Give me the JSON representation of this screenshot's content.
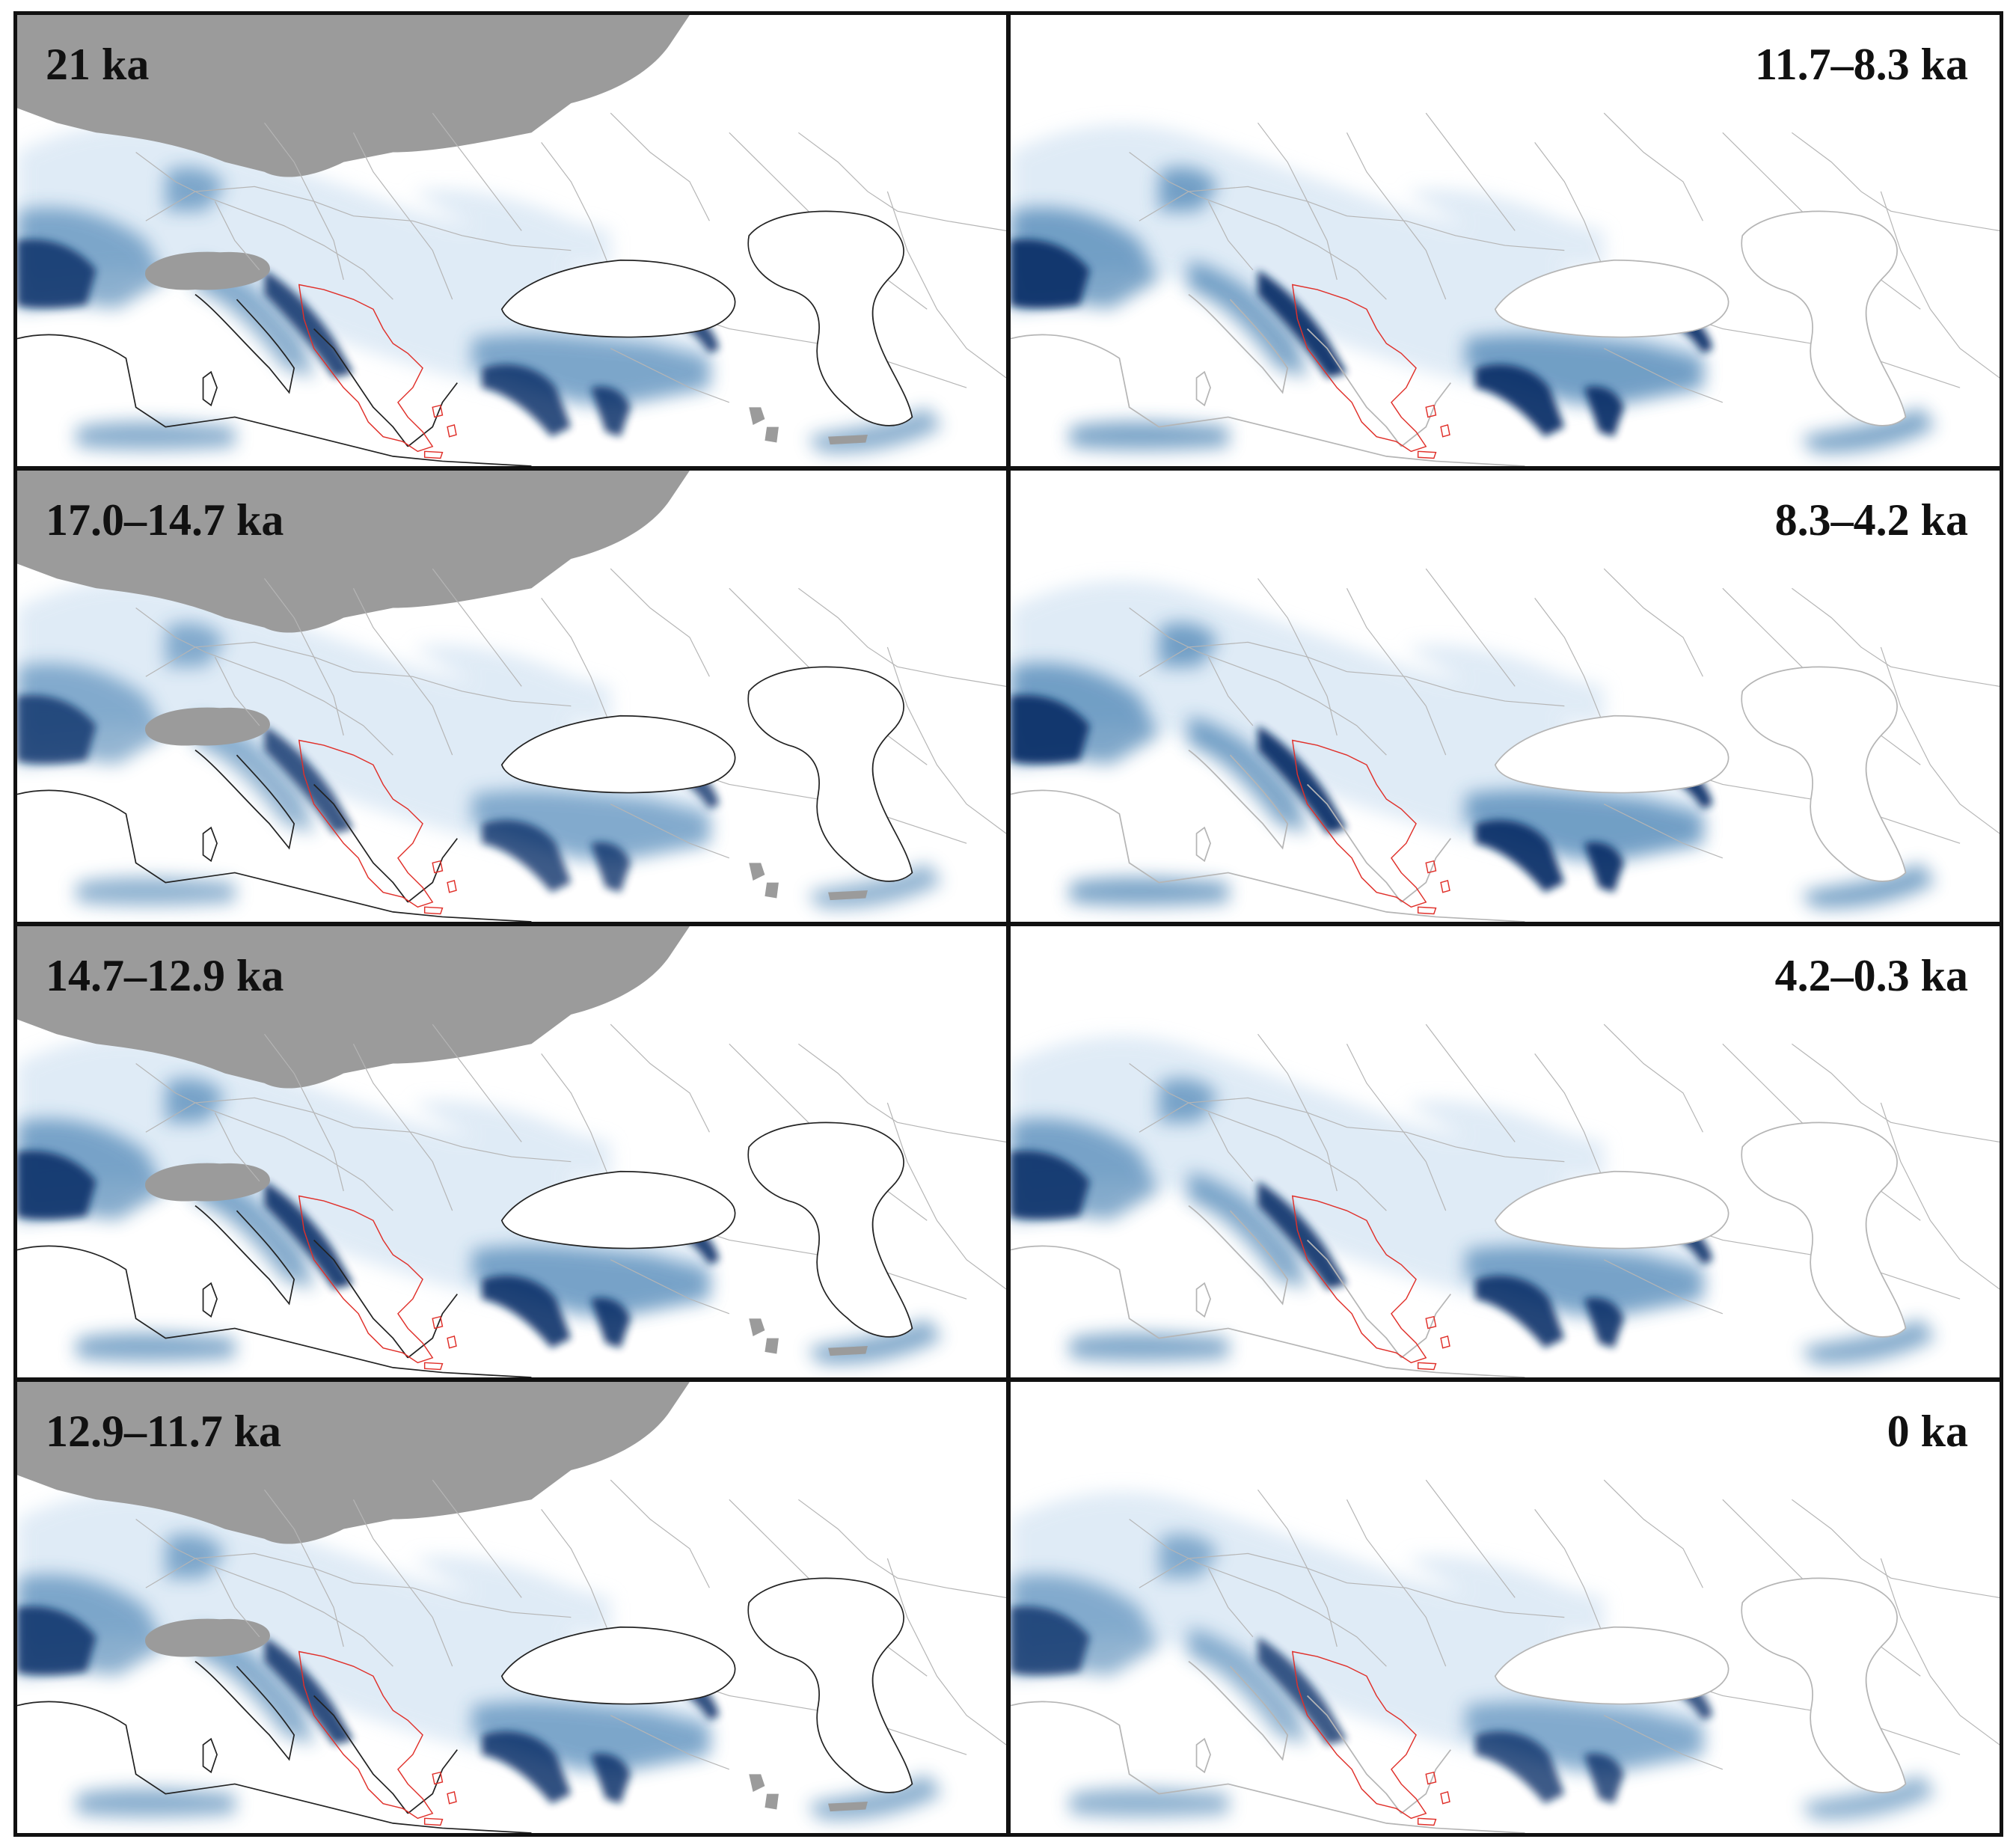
{
  "colors": {
    "suitability_high": "#08306b",
    "suitability_mid": "#2f6fa8",
    "suitability_low": "#c6dbef",
    "ice_sheet": "#9b9b9b",
    "coastline_past": "#222222",
    "borders": "#b5b5b5",
    "greece_outline": "#e0302a",
    "panel_border": "#111111"
  },
  "panels": [
    {
      "label": "21 ka",
      "column": "left",
      "glacial": true,
      "intensity": 0.85
    },
    {
      "label": "11.7–8.3 ka",
      "column": "right",
      "glacial": false,
      "intensity": 0.95
    },
    {
      "label": "17.0–14.7 ka",
      "column": "left",
      "glacial": true,
      "intensity": 0.8
    },
    {
      "label": "8.3–4.2 ka",
      "column": "right",
      "glacial": false,
      "intensity": 0.95
    },
    {
      "label": "14.7–12.9 ka",
      "column": "left",
      "glacial": true,
      "intensity": 0.9
    },
    {
      "label": "4.2–0.3 ka",
      "column": "right",
      "glacial": false,
      "intensity": 0.9
    },
    {
      "label": "12.9–11.7 ka",
      "column": "left",
      "glacial": true,
      "intensity": 0.85
    },
    {
      "label": "0 ka",
      "column": "right",
      "glacial": false,
      "intensity": 0.8
    }
  ]
}
